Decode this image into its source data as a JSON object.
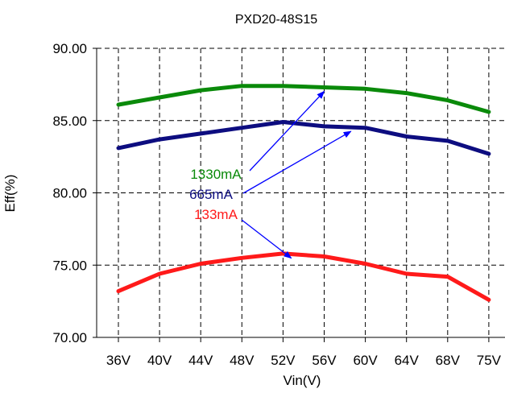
{
  "chart_data": {
    "type": "line",
    "title": "PXD20-48S15",
    "xlabel": "Vin(V)",
    "ylabel": "Eff(%)",
    "categories": [
      "36V",
      "40V",
      "44V",
      "48V",
      "52V",
      "56V",
      "60V",
      "64V",
      "68V",
      "75V"
    ],
    "ylim": [
      70,
      90
    ],
    "yticks": [
      "70.00",
      "75.00",
      "80.00",
      "85.00",
      "90.00"
    ],
    "ytick_values": [
      70,
      75,
      80,
      85,
      90
    ],
    "grid": true,
    "series": [
      {
        "name": "1330mA",
        "color": "#0a8a0a",
        "values": [
          86.1,
          86.6,
          87.1,
          87.4,
          87.4,
          87.3,
          87.2,
          86.9,
          86.4,
          85.6
        ]
      },
      {
        "name": "665mA",
        "color": "#0d0d80",
        "values": [
          83.1,
          83.7,
          84.1,
          84.5,
          84.9,
          84.6,
          84.5,
          83.9,
          83.6,
          82.7
        ]
      },
      {
        "name": "133mA",
        "color": "#ff1a1a",
        "values": [
          73.2,
          74.4,
          75.1,
          75.5,
          75.8,
          75.6,
          75.1,
          74.4,
          74.2,
          72.6
        ]
      }
    ],
    "annotations": [
      {
        "text": "1330mA",
        "series": 0,
        "arrow_to_category": "56V",
        "color": "#0a8a0a"
      },
      {
        "text": "665mA",
        "series": 1,
        "arrow_to_category": "58V",
        "color": "#0d0d80"
      },
      {
        "text": "133mA",
        "series": 2,
        "arrow_to_category": "52V",
        "color": "#ff1a1a"
      }
    ],
    "arrow_color": "#0000ff"
  }
}
